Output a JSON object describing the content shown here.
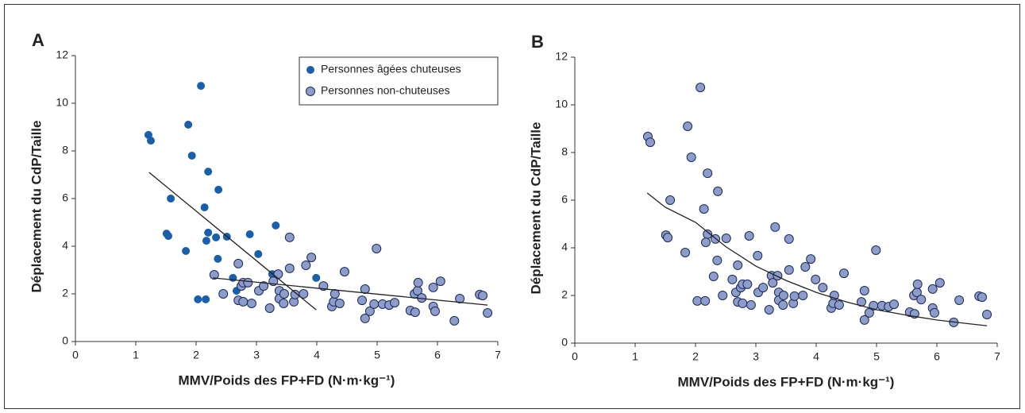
{
  "chart_data": [
    {
      "type": "scatter",
      "panel": "A",
      "xlabel": "MMV/Poids des FP+FD (N·m·kg⁻¹)",
      "ylabel": "Déplacement du CdP/Taille",
      "xlim": [
        0,
        7
      ],
      "xticks": [
        0,
        1,
        2,
        3,
        4,
        5,
        6,
        7
      ],
      "ylim": [
        0,
        12
      ],
      "yticks": [
        0,
        2,
        4,
        6,
        8,
        10,
        12
      ],
      "legend": "upper right",
      "series": [
        {
          "name": "Personnes âgées chuteuses",
          "color": "#1a5fa8",
          "edge": "#1a5fa8",
          "x": [
            1.21,
            1.25,
            1.58,
            1.51,
            1.54,
            1.87,
            1.93,
            2.08,
            1.83,
            2.03,
            2.16,
            2.14,
            2.2,
            2.37,
            2.2,
            2.17,
            2.33,
            2.36,
            2.51,
            2.61,
            2.67,
            2.89,
            3.03,
            3.32,
            3.26,
            3.99
          ],
          "values": [
            8.67,
            8.43,
            6.0,
            4.53,
            4.43,
            9.1,
            7.8,
            10.73,
            3.8,
            1.77,
            1.77,
            5.63,
            7.13,
            6.37,
            4.57,
            4.23,
            4.37,
            3.47,
            4.4,
            2.67,
            2.13,
            4.5,
            3.67,
            4.87,
            2.83,
            2.67
          ]
        },
        {
          "name": "Personnes non-chuteuses",
          "color": "#8e9cca",
          "edge": "#1a2a5a",
          "x": [
            2.3,
            2.45,
            2.7,
            2.75,
            2.78,
            2.7,
            2.78,
            2.86,
            2.92,
            3.04,
            3.12,
            3.22,
            3.28,
            3.36,
            3.38,
            3.38,
            3.46,
            3.45,
            3.55,
            3.55,
            3.62,
            3.64,
            3.78,
            3.82,
            3.91,
            4.11,
            4.25,
            4.28,
            4.3,
            4.38,
            4.46,
            4.75,
            4.8,
            4.8,
            4.88,
            4.95,
            4.99,
            5.09,
            5.2,
            5.29,
            5.55,
            5.62,
            5.63,
            5.67,
            5.68,
            5.74,
            5.93,
            5.93,
            5.96,
            6.05,
            6.28,
            6.37,
            6.7,
            6.75,
            6.83
          ],
          "values": [
            2.8,
            2.0,
            3.27,
            2.33,
            2.47,
            1.73,
            1.67,
            2.47,
            1.6,
            2.13,
            2.33,
            1.4,
            2.53,
            2.83,
            2.13,
            1.8,
            2.0,
            1.6,
            3.07,
            4.37,
            1.67,
            1.97,
            2.0,
            3.2,
            3.53,
            2.33,
            1.47,
            1.67,
            2.0,
            1.6,
            2.93,
            1.73,
            2.2,
            0.97,
            1.27,
            1.57,
            3.9,
            1.57,
            1.53,
            1.63,
            1.3,
            2.0,
            1.23,
            2.13,
            2.47,
            1.83,
            1.47,
            2.27,
            1.27,
            2.53,
            0.87,
            1.8,
            1.97,
            1.93,
            1.2
          ]
        }
      ],
      "fit_lines": [
        {
          "color": "#222",
          "x": [
            1.22,
            3.99
          ],
          "values": [
            7.1,
            1.33
          ]
        },
        {
          "color": "#222",
          "x": [
            2.28,
            6.83
          ],
          "values": [
            2.67,
            1.53
          ]
        }
      ]
    },
    {
      "type": "scatter",
      "panel": "B",
      "xlabel": "MMV/Poids des FP+FD (N·m·kg⁻¹)",
      "ylabel": "Déplacement du CdP/Taille",
      "xlim": [
        0,
        7
      ],
      "xticks": [
        0,
        1,
        2,
        3,
        4,
        5,
        6,
        7
      ],
      "ylim": [
        0,
        12
      ],
      "yticks": [
        0,
        2,
        4,
        6,
        8,
        10,
        12
      ],
      "series": [
        {
          "color": "#8e9cca",
          "edge": "#1a2a5a",
          "x": [
            1.21,
            1.25,
            1.58,
            1.51,
            1.54,
            1.87,
            1.93,
            2.08,
            1.83,
            2.03,
            2.16,
            2.14,
            2.2,
            2.37,
            2.2,
            2.17,
            2.33,
            2.36,
            2.51,
            2.61,
            2.67,
            2.89,
            3.03,
            3.32,
            3.26,
            3.99,
            2.3,
            2.45,
            2.7,
            2.75,
            2.78,
            2.7,
            2.78,
            2.86,
            2.92,
            3.04,
            3.12,
            3.22,
            3.28,
            3.36,
            3.38,
            3.38,
            3.46,
            3.45,
            3.55,
            3.55,
            3.62,
            3.64,
            3.78,
            3.82,
            3.91,
            4.11,
            4.25,
            4.28,
            4.3,
            4.38,
            4.46,
            4.75,
            4.8,
            4.8,
            4.88,
            4.95,
            4.99,
            5.09,
            5.2,
            5.29,
            5.55,
            5.62,
            5.63,
            5.67,
            5.68,
            5.74,
            5.93,
            5.93,
            5.96,
            6.05,
            6.28,
            6.37,
            6.7,
            6.75,
            6.83
          ],
          "values": [
            8.67,
            8.43,
            6.0,
            4.53,
            4.43,
            9.1,
            7.8,
            10.73,
            3.8,
            1.77,
            1.77,
            5.63,
            7.13,
            6.37,
            4.57,
            4.23,
            4.37,
            3.47,
            4.4,
            2.67,
            2.13,
            4.5,
            3.67,
            4.87,
            2.83,
            2.67,
            2.8,
            2.0,
            3.27,
            2.33,
            2.47,
            1.73,
            1.67,
            2.47,
            1.6,
            2.13,
            2.33,
            1.4,
            2.53,
            2.83,
            2.13,
            1.8,
            2.0,
            1.6,
            3.07,
            4.37,
            1.67,
            1.97,
            2.0,
            3.2,
            3.53,
            2.33,
            1.47,
            1.67,
            2.0,
            1.6,
            2.93,
            1.73,
            2.2,
            0.97,
            1.27,
            1.57,
            3.9,
            1.57,
            1.53,
            1.63,
            1.3,
            2.0,
            1.23,
            2.13,
            2.47,
            1.83,
            1.47,
            2.27,
            1.27,
            2.53,
            0.87,
            1.8,
            1.97,
            1.93,
            1.2
          ]
        }
      ],
      "fit_lines": [
        {
          "color": "#222",
          "x": [
            1.2,
            1.5,
            2,
            2.5,
            3,
            3.5,
            4,
            4.5,
            5,
            5.5,
            6,
            6.5,
            6.83
          ],
          "values": [
            6.3,
            5.7,
            5.07,
            4.05,
            3.23,
            2.63,
            2.13,
            1.73,
            1.4,
            1.17,
            0.97,
            0.82,
            0.73
          ]
        }
      ]
    }
  ]
}
